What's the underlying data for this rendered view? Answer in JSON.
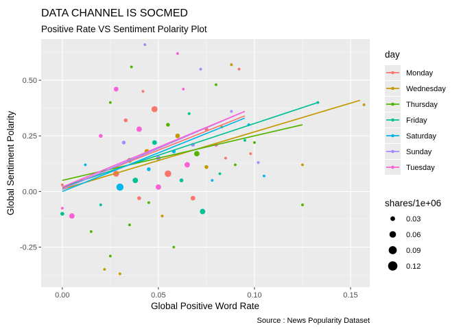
{
  "chart_data": {
    "type": "scatter",
    "title": "DATA CHANNEL IS SOCMED",
    "subtitle": "Positive Rate VS Sentiment Polarity Plot",
    "xlabel": "Global Positive Word Rate",
    "ylabel": "Global Sentiment Polarity",
    "caption": "Source : News Popularity Dataset",
    "xlim": [
      -0.011,
      0.16
    ],
    "ylim": [
      -0.43,
      0.685
    ],
    "xticks": [
      0.0,
      0.05,
      0.1,
      0.15
    ],
    "xtick_labels": [
      "0.00",
      "0.05",
      "0.10",
      "0.15"
    ],
    "yticks": [
      -0.25,
      0.0,
      0.25,
      0.5
    ],
    "ytick_labels": [
      "-0.25",
      "0.00",
      "0.25",
      "0.50"
    ],
    "grid": true,
    "panel_background": "#ebebeb",
    "legend_position": "right",
    "color_legend": {
      "title": "day",
      "entries": [
        {
          "label": "Monday",
          "color": "#F8766D"
        },
        {
          "label": "Wednesday",
          "color": "#C49A00"
        },
        {
          "label": "Thursday",
          "color": "#53B400"
        },
        {
          "label": "Friday",
          "color": "#00C094"
        },
        {
          "label": "Saturday",
          "color": "#00B6EB"
        },
        {
          "label": "Sunday",
          "color": "#A58AFF"
        },
        {
          "label": "Tuesday",
          "color": "#FB61D7"
        }
      ]
    },
    "size_legend": {
      "title": "shares/1e+06",
      "values": [
        0.03,
        0.06,
        0.09,
        0.12
      ],
      "labels": [
        "0.03",
        "0.06",
        "0.09",
        "0.12"
      ]
    },
    "trend_lines": [
      {
        "day": "Monday",
        "x": [
          0.0,
          0.095
        ],
        "y": [
          0.015,
          0.34
        ]
      },
      {
        "day": "Wednesday",
        "x": [
          0.0,
          0.155
        ],
        "y": [
          0.01,
          0.41
        ]
      },
      {
        "day": "Thursday",
        "x": [
          0.0,
          0.125
        ],
        "y": [
          0.05,
          0.3
        ]
      },
      {
        "day": "Friday",
        "x": [
          0.0,
          0.133
        ],
        "y": [
          0.02,
          0.4
        ]
      },
      {
        "day": "Saturday",
        "x": [
          0.0,
          0.095
        ],
        "y": [
          0.0,
          0.33
        ]
      },
      {
        "day": "Sunday",
        "x": [
          0.0,
          0.095
        ],
        "y": [
          0.01,
          0.36
        ]
      },
      {
        "day": "Tuesday",
        "x": [
          0.0,
          0.095
        ],
        "y": [
          0.02,
          0.36
        ]
      }
    ],
    "points": [
      {
        "x": 0.0,
        "y": -0.1,
        "day": "Friday",
        "shares": 0.02
      },
      {
        "x": 0.0,
        "y": -0.075,
        "day": "Tuesday",
        "shares": 0.01
      },
      {
        "x": 0.0,
        "y": 0.03,
        "day": "Monday",
        "shares": 0.01
      },
      {
        "x": 0.005,
        "y": -0.11,
        "day": "Tuesday",
        "shares": 0.04
      },
      {
        "x": 0.01,
        "y": 0.05,
        "day": "Wednesday",
        "shares": 0.01
      },
      {
        "x": 0.012,
        "y": 0.12,
        "day": "Saturday",
        "shares": 0.01
      },
      {
        "x": 0.015,
        "y": -0.18,
        "day": "Thursday",
        "shares": 0.01
      },
      {
        "x": 0.02,
        "y": 0.25,
        "day": "Tuesday",
        "shares": 0.02
      },
      {
        "x": 0.02,
        "y": -0.06,
        "day": "Friday",
        "shares": 0.01
      },
      {
        "x": 0.022,
        "y": -0.35,
        "day": "Wednesday",
        "shares": 0.01
      },
      {
        "x": 0.025,
        "y": -0.29,
        "day": "Thursday",
        "shares": 0.01
      },
      {
        "x": 0.025,
        "y": 0.4,
        "day": "Thursday",
        "shares": 0.01
      },
      {
        "x": 0.028,
        "y": 0.46,
        "day": "Tuesday",
        "shares": 0.03
      },
      {
        "x": 0.028,
        "y": 0.08,
        "day": "Monday",
        "shares": 0.05
      },
      {
        "x": 0.03,
        "y": -0.37,
        "day": "Wednesday",
        "shares": 0.01
      },
      {
        "x": 0.03,
        "y": 0.02,
        "day": "Saturday",
        "shares": 0.07
      },
      {
        "x": 0.032,
        "y": 0.22,
        "day": "Sunday",
        "shares": 0.02
      },
      {
        "x": 0.033,
        "y": 0.32,
        "day": "Monday",
        "shares": 0.02
      },
      {
        "x": 0.035,
        "y": 0.14,
        "day": "Thursday",
        "shares": 0.03
      },
      {
        "x": 0.035,
        "y": -0.15,
        "day": "Thursday",
        "shares": 0.01
      },
      {
        "x": 0.036,
        "y": 0.56,
        "day": "Thursday",
        "shares": 0.01
      },
      {
        "x": 0.038,
        "y": 0.05,
        "day": "Friday",
        "shares": 0.04
      },
      {
        "x": 0.04,
        "y": 0.28,
        "day": "Tuesday",
        "shares": 0.04
      },
      {
        "x": 0.04,
        "y": -0.03,
        "day": "Monday",
        "shares": 0.02
      },
      {
        "x": 0.042,
        "y": 0.45,
        "day": "Monday",
        "shares": 0.01
      },
      {
        "x": 0.043,
        "y": 0.66,
        "day": "Sunday",
        "shares": 0.01
      },
      {
        "x": 0.044,
        "y": 0.18,
        "day": "Wednesday",
        "shares": 0.03
      },
      {
        "x": 0.045,
        "y": 0.1,
        "day": "Saturday",
        "shares": 0.02
      },
      {
        "x": 0.045,
        "y": -0.05,
        "day": "Thursday",
        "shares": 0.01
      },
      {
        "x": 0.048,
        "y": 0.37,
        "day": "Monday",
        "shares": 0.05
      },
      {
        "x": 0.048,
        "y": 0.22,
        "day": "Friday",
        "shares": 0.03
      },
      {
        "x": 0.05,
        "y": 0.02,
        "day": "Tuesday",
        "shares": 0.04
      },
      {
        "x": 0.05,
        "y": 0.15,
        "day": "Sunday",
        "shares": 0.03
      },
      {
        "x": 0.052,
        "y": -0.11,
        "day": "Wednesday",
        "shares": 0.01
      },
      {
        "x": 0.055,
        "y": 0.3,
        "day": "Thursday",
        "shares": 0.02
      },
      {
        "x": 0.055,
        "y": 0.08,
        "day": "Monday",
        "shares": 0.06
      },
      {
        "x": 0.058,
        "y": 0.18,
        "day": "Saturday",
        "shares": 0.02
      },
      {
        "x": 0.058,
        "y": -0.25,
        "day": "Thursday",
        "shares": 0.01
      },
      {
        "x": 0.06,
        "y": 0.62,
        "day": "Tuesday",
        "shares": 0.01
      },
      {
        "x": 0.06,
        "y": 0.25,
        "day": "Wednesday",
        "shares": 0.03
      },
      {
        "x": 0.062,
        "y": 0.05,
        "day": "Friday",
        "shares": 0.02
      },
      {
        "x": 0.063,
        "y": 0.46,
        "day": "Tuesday",
        "shares": 0.01
      },
      {
        "x": 0.065,
        "y": 0.12,
        "day": "Tuesday",
        "shares": 0.04
      },
      {
        "x": 0.066,
        "y": 0.35,
        "day": "Friday",
        "shares": 0.01
      },
      {
        "x": 0.068,
        "y": -0.03,
        "day": "Monday",
        "shares": 0.03
      },
      {
        "x": 0.068,
        "y": 0.21,
        "day": "Sunday",
        "shares": 0.02
      },
      {
        "x": 0.07,
        "y": 0.17,
        "day": "Thursday",
        "shares": 0.04
      },
      {
        "x": 0.072,
        "y": 0.55,
        "day": "Sunday",
        "shares": 0.01
      },
      {
        "x": 0.073,
        "y": -0.09,
        "day": "Friday",
        "shares": 0.04
      },
      {
        "x": 0.075,
        "y": 0.11,
        "day": "Wednesday",
        "shares": 0.02
      },
      {
        "x": 0.075,
        "y": 0.28,
        "day": "Monday",
        "shares": 0.02
      },
      {
        "x": 0.078,
        "y": 0.05,
        "day": "Saturday",
        "shares": 0.01
      },
      {
        "x": 0.08,
        "y": 0.21,
        "day": "Tuesday",
        "shares": 0.02
      },
      {
        "x": 0.08,
        "y": 0.48,
        "day": "Thursday",
        "shares": 0.01
      },
      {
        "x": 0.082,
        "y": 0.08,
        "day": "Friday",
        "shares": 0.01
      },
      {
        "x": 0.083,
        "y": 0.29,
        "day": "Wednesday",
        "shares": 0.01
      },
      {
        "x": 0.085,
        "y": 0.15,
        "day": "Monday",
        "shares": 0.01
      },
      {
        "x": 0.088,
        "y": 0.57,
        "day": "Wednesday",
        "shares": 0.01
      },
      {
        "x": 0.088,
        "y": 0.36,
        "day": "Sunday",
        "shares": 0.01
      },
      {
        "x": 0.09,
        "y": 0.12,
        "day": "Thursday",
        "shares": 0.01
      },
      {
        "x": 0.092,
        "y": 0.55,
        "day": "Monday",
        "shares": 0.01
      },
      {
        "x": 0.095,
        "y": 0.23,
        "day": "Friday",
        "shares": 0.01
      },
      {
        "x": 0.097,
        "y": 0.3,
        "day": "Saturday",
        "shares": 0.01
      },
      {
        "x": 0.098,
        "y": 0.17,
        "day": "Monday",
        "shares": 0.01
      },
      {
        "x": 0.1,
        "y": 0.22,
        "day": "Thursday",
        "shares": 0.01
      },
      {
        "x": 0.102,
        "y": 0.13,
        "day": "Sunday",
        "shares": 0.01
      },
      {
        "x": 0.105,
        "y": 0.07,
        "day": "Saturday",
        "shares": 0.01
      },
      {
        "x": 0.125,
        "y": 0.12,
        "day": "Wednesday",
        "shares": 0.01
      },
      {
        "x": 0.125,
        "y": -0.06,
        "day": "Thursday",
        "shares": 0.01
      },
      {
        "x": 0.133,
        "y": 0.4,
        "day": "Friday",
        "shares": 0.01
      },
      {
        "x": 0.157,
        "y": 0.39,
        "day": "Wednesday",
        "shares": 0.01
      }
    ]
  }
}
